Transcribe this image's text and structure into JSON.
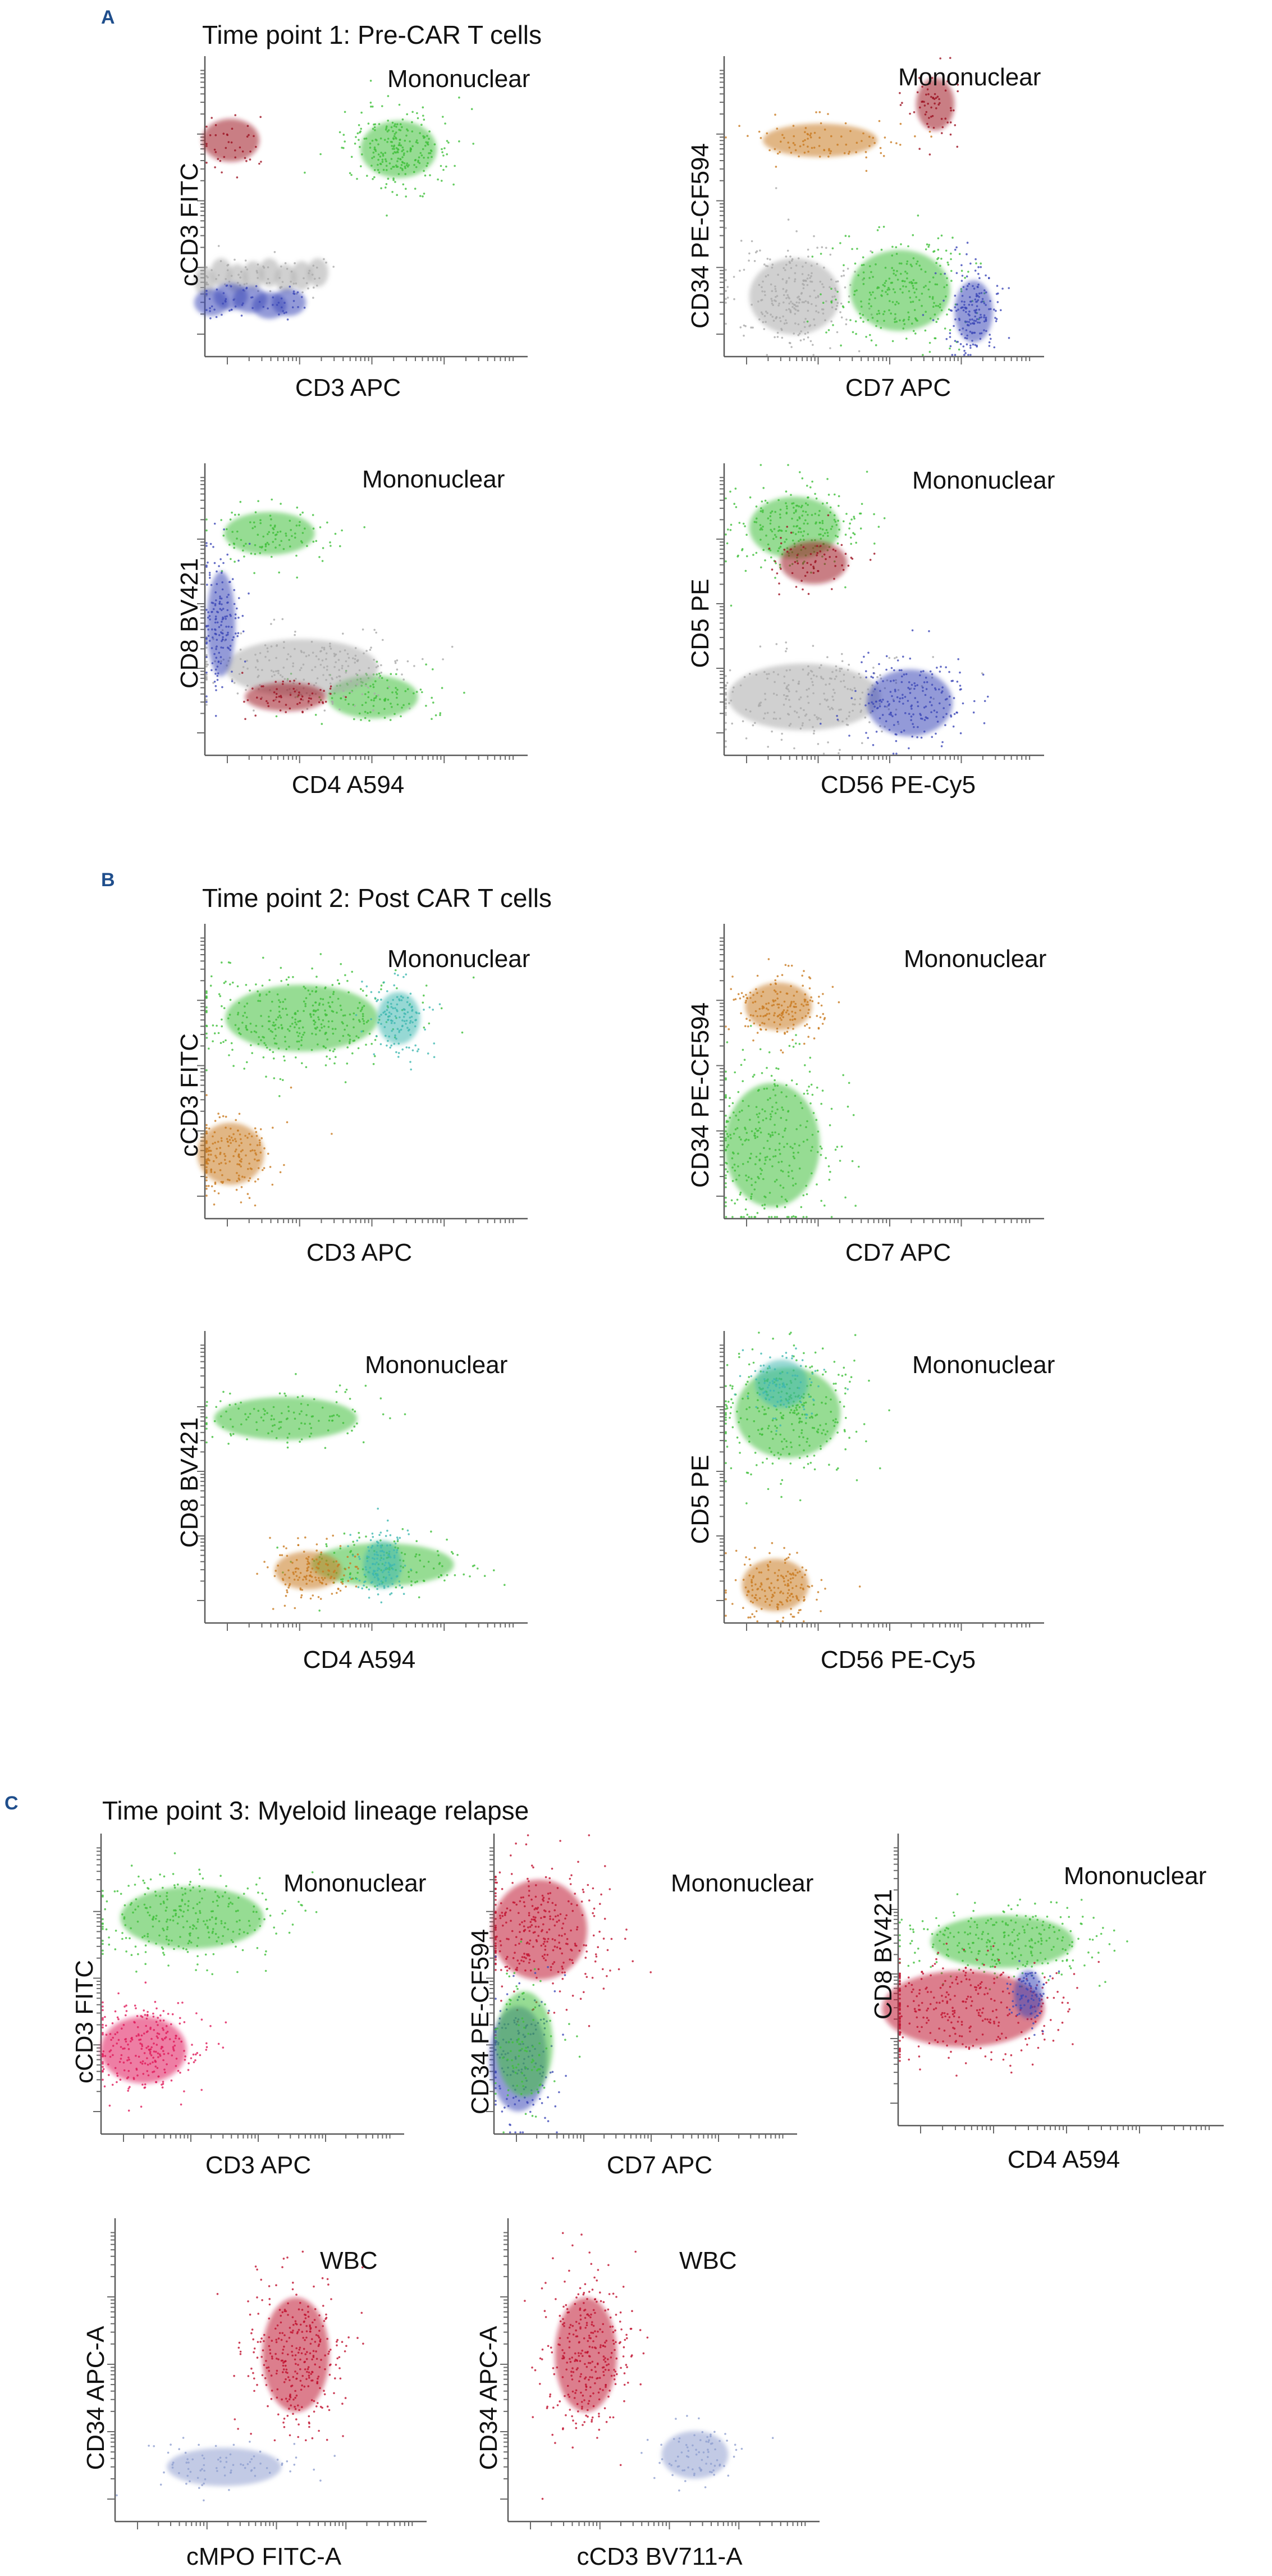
{
  "figure": {
    "sections": [
      {
        "letter": "A",
        "title": "Time point 1: Pre-CAR T cells",
        "plots": [
          {
            "gate": "Mononuclear",
            "xlabel": "CD3 APC",
            "ylabel": "cCD3 FITC"
          },
          {
            "gate": "Mononuclear",
            "xlabel": "CD7 APC",
            "ylabel": "CD34 PE-CF594"
          },
          {
            "gate": "Mononuclear",
            "xlabel": "CD4 A594",
            "ylabel": "CD8 BV421"
          },
          {
            "gate": "Mononuclear",
            "xlabel": "CD56 PE-Cy5",
            "ylabel": "CD5 PE"
          }
        ]
      },
      {
        "letter": "B",
        "title": "Time point 2: Post CAR T cells",
        "plots": [
          {
            "gate": "Mononuclear",
            "xlabel": "CD3 APC",
            "ylabel": "cCD3 FITC"
          },
          {
            "gate": "Mononuclear",
            "xlabel": "CD7 APC",
            "ylabel": "CD34 PE-CF594"
          },
          {
            "gate": "Mononuclear",
            "xlabel": "CD4 A594",
            "ylabel": "CD8 BV421"
          },
          {
            "gate": "Mononuclear",
            "xlabel": "CD56 PE-Cy5",
            "ylabel": "CD5 PE"
          }
        ]
      },
      {
        "letter": "C",
        "title": "Time point 3: Myeloid lineage relapse",
        "plots": [
          {
            "gate": "Mononuclear",
            "xlabel": "CD3 APC",
            "ylabel": "cCD3 FITC"
          },
          {
            "gate": "Mononuclear",
            "xlabel": "CD7 APC",
            "ylabel": "CD34 PE-CF594"
          },
          {
            "gate": "Mononuclear",
            "xlabel": "CD4 A594",
            "ylabel": "CD8 BV421"
          },
          {
            "gate": "WBC",
            "xlabel": "cMPO FITC-A",
            "ylabel": "CD34 APC-A"
          },
          {
            "gate": "WBC",
            "xlabel": "cCD3 BV711-A",
            "ylabel": "CD34 APC-A"
          }
        ]
      }
    ]
  },
  "colors": {
    "green": "#3fbf3a",
    "gray": "#a9a9a9",
    "blue": "#3d49b8",
    "darkred": "#9c1020",
    "orange": "#c97a20",
    "teal": "#3fb8b0",
    "pink": "#e01a5a",
    "crimson": "#c0102e",
    "lightblue": "#8f9fd0"
  },
  "chart_data": [
    {
      "type": "scatter",
      "section": "A",
      "title": "Time point 1: Pre-CAR T cells · Mononuclear",
      "xlabel": "CD3 APC",
      "ylabel": "cCD3 FITC",
      "xlim": [
        0,
        1
      ],
      "ylim": [
        0,
        1
      ],
      "series": [
        {
          "name": "gray",
          "x": [
            0.0,
            0.05,
            0.1,
            0.15,
            0.2,
            0.25,
            0.3,
            0.35
          ],
          "y": [
            0.25,
            0.28,
            0.26,
            0.27,
            0.28,
            0.26,
            0.27,
            0.28
          ]
        },
        {
          "name": "blue",
          "x": [
            0.02,
            0.08,
            0.14,
            0.2,
            0.26
          ],
          "y": [
            0.18,
            0.2,
            0.19,
            0.17,
            0.18
          ]
        },
        {
          "name": "green",
          "x": [
            0.6
          ],
          "y": [
            0.69
          ]
        },
        {
          "name": "darkred",
          "x": [
            0.08
          ],
          "y": [
            0.72
          ]
        }
      ]
    },
    {
      "type": "scatter",
      "section": "A",
      "title": "Time point 1: Pre-CAR T cells · Mononuclear",
      "xlabel": "CD7 APC",
      "ylabel": "CD34 PE-CF594",
      "xlim": [
        0,
        1
      ],
      "ylim": [
        0,
        1
      ],
      "series": [
        {
          "name": "gray",
          "x": [
            0.22
          ],
          "y": [
            0.2
          ]
        },
        {
          "name": "green",
          "x": [
            0.55
          ],
          "y": [
            0.22
          ]
        },
        {
          "name": "blue",
          "x": [
            0.78
          ],
          "y": [
            0.15
          ]
        },
        {
          "name": "orange",
          "x": [
            0.3
          ],
          "y": [
            0.72
          ]
        },
        {
          "name": "darkred",
          "x": [
            0.66
          ],
          "y": [
            0.84
          ]
        }
      ]
    },
    {
      "type": "scatter",
      "section": "A",
      "title": "Time point 1: Pre-CAR T cells · Mononuclear",
      "xlabel": "CD4 A594",
      "ylabel": "CD8 BV421",
      "xlim": [
        0,
        1
      ],
      "ylim": [
        0,
        1
      ],
      "series": [
        {
          "name": "green",
          "x": [
            0.2,
            0.52
          ],
          "y": [
            0.76,
            0.2
          ]
        },
        {
          "name": "gray",
          "x": [
            0.3
          ],
          "y": [
            0.3
          ]
        },
        {
          "name": "blue",
          "x": [
            0.05
          ],
          "y": [
            0.45
          ]
        },
        {
          "name": "darkred",
          "x": [
            0.25
          ],
          "y": [
            0.2
          ]
        }
      ]
    },
    {
      "type": "scatter",
      "section": "A",
      "title": "Time point 1: Pre-CAR T cells · Mononuclear",
      "xlabel": "CD56 PE-Cy5",
      "ylabel": "CD5 PE",
      "xlim": [
        0,
        1
      ],
      "ylim": [
        0,
        1
      ],
      "series": [
        {
          "name": "green",
          "x": [
            0.22
          ],
          "y": [
            0.78
          ]
        },
        {
          "name": "gray",
          "x": [
            0.25
          ],
          "y": [
            0.2
          ]
        },
        {
          "name": "blue",
          "x": [
            0.58
          ],
          "y": [
            0.18
          ]
        },
        {
          "name": "darkred",
          "x": [
            0.28
          ],
          "y": [
            0.66
          ]
        }
      ]
    },
    {
      "type": "scatter",
      "section": "B",
      "title": "Time point 2: Post CAR T cells · Mononuclear",
      "xlabel": "CD3 APC",
      "ylabel": "cCD3 FITC",
      "xlim": [
        0,
        1
      ],
      "ylim": [
        0,
        1
      ],
      "series": [
        {
          "name": "green",
          "x": [
            0.3
          ],
          "y": [
            0.68
          ]
        },
        {
          "name": "teal",
          "x": [
            0.6
          ],
          "y": [
            0.68
          ]
        },
        {
          "name": "orange",
          "x": [
            0.08
          ],
          "y": [
            0.22
          ]
        }
      ]
    },
    {
      "type": "scatter",
      "section": "B",
      "title": "Time point 2: Post CAR T cells · Mononuclear",
      "xlabel": "CD7 APC",
      "ylabel": "CD34 PE-CF594",
      "xlim": [
        0,
        1
      ],
      "ylim": [
        0,
        1
      ],
      "series": [
        {
          "name": "orange",
          "x": [
            0.17
          ],
          "y": [
            0.72
          ]
        },
        {
          "name": "green",
          "x": [
            0.15
          ],
          "y": [
            0.25
          ]
        }
      ]
    },
    {
      "type": "scatter",
      "section": "B",
      "title": "Time point 2: Post CAR T cells · Mononuclear",
      "xlabel": "CD4 A594",
      "ylabel": "CD8 BV421",
      "xlim": [
        0,
        1
      ],
      "ylim": [
        0,
        1
      ],
      "series": [
        {
          "name": "green",
          "x": [
            0.25,
            0.55
          ],
          "y": [
            0.7,
            0.2
          ]
        },
        {
          "name": "orange",
          "x": [
            0.32
          ],
          "y": [
            0.18
          ]
        },
        {
          "name": "teal",
          "x": [
            0.55
          ],
          "y": [
            0.2
          ]
        }
      ]
    },
    {
      "type": "scatter",
      "section": "B",
      "title": "Time point 2: Post CAR T cells · Mononuclear",
      "xlabel": "CD56 PE-Cy5",
      "ylabel": "CD5 PE",
      "xlim": [
        0,
        1
      ],
      "ylim": [
        0,
        1
      ],
      "series": [
        {
          "name": "green",
          "x": [
            0.2
          ],
          "y": [
            0.72
          ]
        },
        {
          "name": "teal",
          "x": [
            0.18
          ],
          "y": [
            0.82
          ]
        },
        {
          "name": "orange",
          "x": [
            0.16
          ],
          "y": [
            0.13
          ]
        }
      ]
    },
    {
      "type": "scatter",
      "section": "C",
      "title": "Time point 3: Myeloid lineage relapse · Mononuclear",
      "xlabel": "CD3 APC",
      "ylabel": "cCD3 FITC",
      "xlim": [
        0,
        1
      ],
      "ylim": [
        0,
        1
      ],
      "series": [
        {
          "name": "green",
          "x": [
            0.3
          ],
          "y": [
            0.72
          ]
        },
        {
          "name": "pink",
          "x": [
            0.14
          ],
          "y": [
            0.28
          ]
        }
      ]
    },
    {
      "type": "scatter",
      "section": "C",
      "title": "Time point 3: Myeloid lineage relapse · Mononuclear",
      "xlabel": "CD7 APC",
      "ylabel": "CD34 PE-CF594",
      "xlim": [
        0,
        1
      ],
      "ylim": [
        0,
        1
      ],
      "series": [
        {
          "name": "crimson",
          "x": [
            0.15
          ],
          "y": [
            0.68
          ]
        },
        {
          "name": "blue",
          "x": [
            0.08
          ],
          "y": [
            0.25
          ]
        },
        {
          "name": "green",
          "x": [
            0.1
          ],
          "y": [
            0.3
          ]
        }
      ]
    },
    {
      "type": "scatter",
      "section": "C",
      "title": "Time point 3: Myeloid lineage relapse · Mononuclear",
      "xlabel": "CD4 A594",
      "ylabel": "CD8 BV421",
      "xlim": [
        0,
        1
      ],
      "ylim": [
        0,
        1
      ],
      "series": [
        {
          "name": "green",
          "x": [
            0.32
          ],
          "y": [
            0.63
          ]
        },
        {
          "name": "crimson",
          "x": [
            0.2
          ],
          "y": [
            0.4
          ]
        },
        {
          "name": "blue",
          "x": [
            0.4
          ],
          "y": [
            0.45
          ]
        }
      ]
    },
    {
      "type": "scatter",
      "section": "C",
      "title": "Time point 3: Myeloid lineage relapse · WBC",
      "xlabel": "cMPO FITC-A",
      "ylabel": "CD34 APC-A",
      "xlim": [
        0,
        1
      ],
      "ylim": [
        0,
        1
      ],
      "series": [
        {
          "name": "crimson",
          "x": [
            0.58
          ],
          "y": [
            0.55
          ]
        },
        {
          "name": "lightblue",
          "x": [
            0.35
          ],
          "y": [
            0.18
          ]
        }
      ]
    },
    {
      "type": "scatter",
      "section": "C",
      "title": "Time point 3: Myeloid lineage relapse · WBC",
      "xlabel": "cCD3 BV711-A",
      "ylabel": "CD34 APC-A",
      "xlim": [
        0,
        1
      ],
      "ylim": [
        0,
        1
      ],
      "series": [
        {
          "name": "crimson",
          "x": [
            0.25
          ],
          "y": [
            0.55
          ]
        },
        {
          "name": "lightblue",
          "x": [
            0.6
          ],
          "y": [
            0.22
          ]
        }
      ]
    }
  ]
}
